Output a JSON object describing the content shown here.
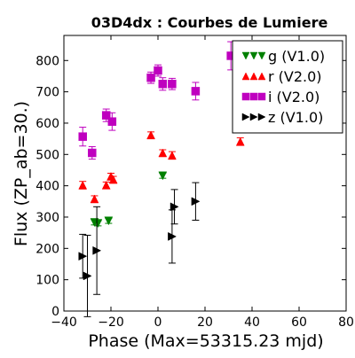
{
  "chart_data": {
    "type": "scatter",
    "title": "03D4dx : Courbes de Lumiere",
    "xlabel": "Phase (Max=53315.23 mjd)",
    "ylabel": "Flux (ZP_ab=30.)",
    "xlim": [
      -40,
      80
    ],
    "ylim": [
      0,
      880
    ],
    "xticks": [
      -40,
      -20,
      0,
      20,
      40,
      60,
      80
    ],
    "yticks": [
      0,
      100,
      200,
      300,
      400,
      500,
      600,
      700,
      800
    ],
    "xtick_labels": [
      "−40",
      "−20",
      "0",
      "20",
      "40",
      "60",
      "80"
    ],
    "ytick_labels": [
      "0",
      "100",
      "200",
      "300",
      "400",
      "500",
      "600",
      "700",
      "800"
    ],
    "grid": false,
    "legend_position": "top-right",
    "series": [
      {
        "name": "g (V1.0)",
        "color": "#008000",
        "marker": "triangle-down",
        "points": [
          {
            "x": -27,
            "y": 283,
            "err": 8
          },
          {
            "x": -25.5,
            "y": 280,
            "err": 8
          },
          {
            "x": -21,
            "y": 288,
            "err": 8
          },
          {
            "x": 2,
            "y": 432,
            "err": 8
          }
        ]
      },
      {
        "name": "r (V2.0)",
        "color": "#ff0000",
        "marker": "triangle-up",
        "points": [
          {
            "x": -32,
            "y": 402,
            "err": 12
          },
          {
            "x": -27,
            "y": 358,
            "err": 10
          },
          {
            "x": -22,
            "y": 402,
            "err": 10
          },
          {
            "x": -20,
            "y": 430,
            "err": 10
          },
          {
            "x": -19,
            "y": 420,
            "err": 10
          },
          {
            "x": -3,
            "y": 562,
            "err": 10
          },
          {
            "x": 2,
            "y": 505,
            "err": 10
          },
          {
            "x": 6,
            "y": 497,
            "err": 12
          },
          {
            "x": 35,
            "y": 541,
            "err": 12
          }
        ]
      },
      {
        "name": "i (V2.0)",
        "color": "#bf00bf",
        "marker": "square",
        "points": [
          {
            "x": -32,
            "y": 557,
            "err": 30
          },
          {
            "x": -28,
            "y": 505,
            "err": 20
          },
          {
            "x": -22,
            "y": 625,
            "err": 20
          },
          {
            "x": -19.5,
            "y": 605,
            "err": 28
          },
          {
            "x": -3,
            "y": 745,
            "err": 18
          },
          {
            "x": 0,
            "y": 768,
            "err": 18
          },
          {
            "x": 2,
            "y": 725,
            "err": 20
          },
          {
            "x": 6,
            "y": 725,
            "err": 18
          },
          {
            "x": 16,
            "y": 702,
            "err": 28
          },
          {
            "x": 31,
            "y": 815,
            "err": 45
          },
          {
            "x": 35,
            "y": 630,
            "err": 35
          }
        ]
      },
      {
        "name": "z (V1.0)",
        "color": "#000000",
        "marker": "triangle-right",
        "points": [
          {
            "x": -32,
            "y": 175,
            "err": 70
          },
          {
            "x": -30,
            "y": 112,
            "err": 130
          },
          {
            "x": -26,
            "y": 193,
            "err": 140
          },
          {
            "x": 6,
            "y": 238,
            "err": 85
          },
          {
            "x": 7,
            "y": 333,
            "err": 55
          },
          {
            "x": 16,
            "y": 350,
            "err": 60
          }
        ]
      }
    ]
  }
}
